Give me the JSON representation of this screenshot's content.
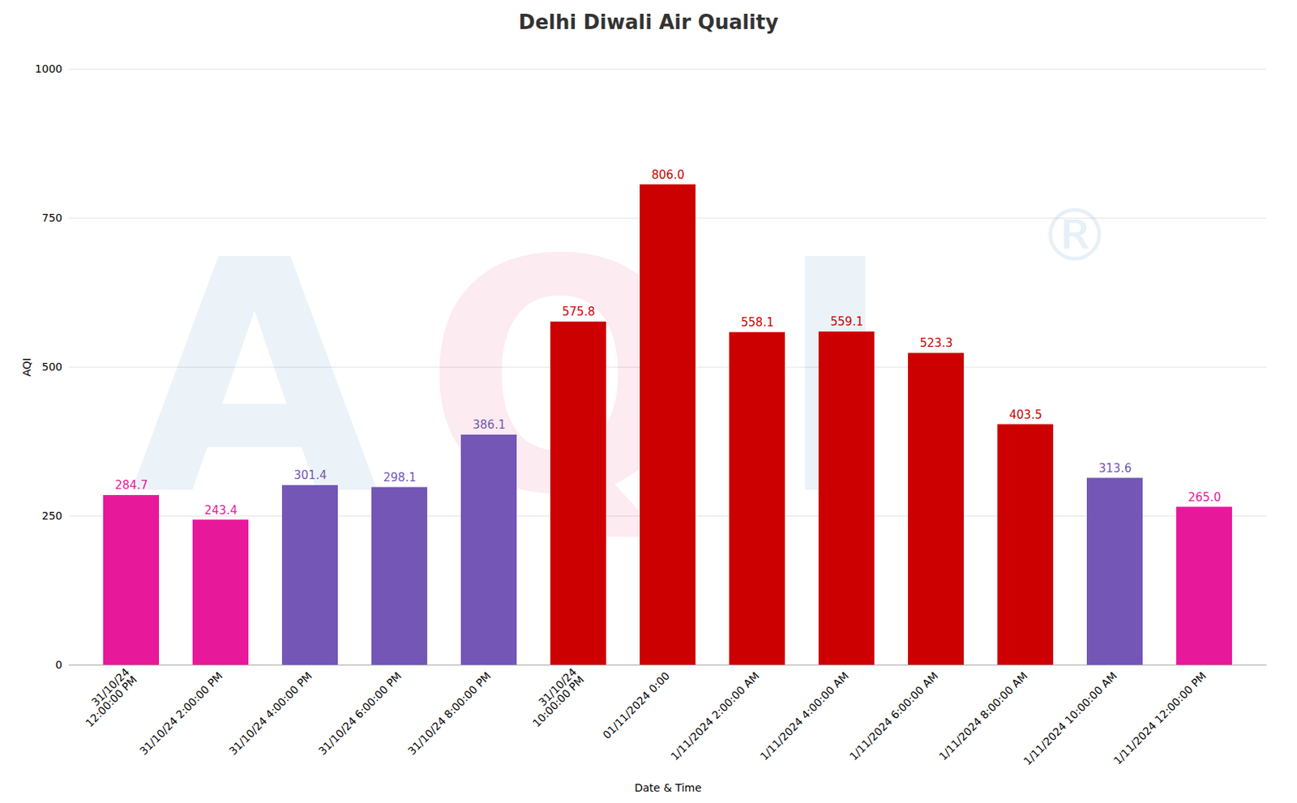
{
  "chart_data": {
    "type": "bar",
    "title": "Delhi Diwali Air Quality",
    "xlabel": "Date & Time",
    "ylabel": "AQI",
    "categories": [
      "31/10/24\n12:00:00 PM",
      "31/10/24 2:00:00 PM",
      "31/10/24 4:00:00 PM",
      "31/10/24 6:00:00 PM",
      "31/10/24 8:00:00 PM",
      "31/10/24\n10:00:00 PM",
      "01/11/2024 0:00",
      "1/11/2024 2:00:00 AM",
      "1/11/2024 4:00:00 AM",
      "1/11/2024 6:00:00 AM",
      "1/11/2024 8:00:00 AM",
      "1/11/2024 10:00:00 AM",
      "1/11/2024 12:00:00 PM"
    ],
    "values": [
      284.7,
      243.4,
      301.4,
      298.1,
      386.1,
      575.8,
      806.0,
      558.1,
      559.1,
      523.3,
      403.5,
      313.6,
      265.0
    ],
    "value_labels": [
      "284.7",
      "243.4",
      "301.4",
      "298.1",
      "386.1",
      "575.8",
      "806.0",
      "558.1",
      "559.1",
      "523.3",
      "403.5",
      "313.6",
      "265.0"
    ],
    "data_labels": true,
    "colors": [
      "#e8189a",
      "#e8189a",
      "#7356b6",
      "#7356b6",
      "#7356b6",
      "#cc0000",
      "#cc0000",
      "#cc0000",
      "#cc0000",
      "#cc0000",
      "#cc0000",
      "#7356b6",
      "#e8189a"
    ],
    "ylim": [
      0,
      1000
    ],
    "yticks": [
      0,
      250,
      500,
      750,
      1000
    ],
    "grid": true,
    "annotations": [
      {
        "text": "A",
        "color": "#b8d4e8"
      },
      {
        "text": "Q",
        "color": "#f5b8c8"
      },
      {
        "text": "I",
        "color": "#b8d4e8"
      },
      {
        "text": "®",
        "color": "#b8d4e8"
      }
    ]
  }
}
